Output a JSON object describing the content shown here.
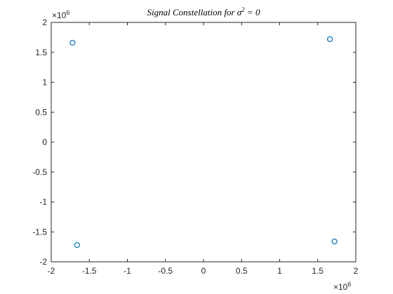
{
  "chart_data": {
    "type": "scatter",
    "title_prefix": "Signal Constellation for ",
    "title_symbol": "σ",
    "title_superscript": "2",
    "title_suffix": " = 0",
    "xlabel": "",
    "ylabel": "",
    "xlim": [
      -2,
      2
    ],
    "ylim": [
      -2,
      2
    ],
    "x_ticks": [
      -2,
      -1.5,
      -1,
      -0.5,
      0,
      0.5,
      1,
      1.5,
      2
    ],
    "y_ticks": [
      -2,
      -1.5,
      -1,
      -0.5,
      0,
      0.5,
      1,
      1.5,
      2
    ],
    "x_multiplier_base": "×10",
    "x_multiplier_exp": "6",
    "y_multiplier_base": "×10",
    "y_multiplier_exp": "6",
    "grid": false,
    "marker": "circle-open",
    "marker_color": "#0072bd",
    "axis_color": "#262626",
    "points": [
      {
        "x": -1.72,
        "y": 1.66
      },
      {
        "x": 1.66,
        "y": 1.72
      },
      {
        "x": -1.66,
        "y": -1.72
      },
      {
        "x": 1.72,
        "y": -1.66
      }
    ]
  }
}
